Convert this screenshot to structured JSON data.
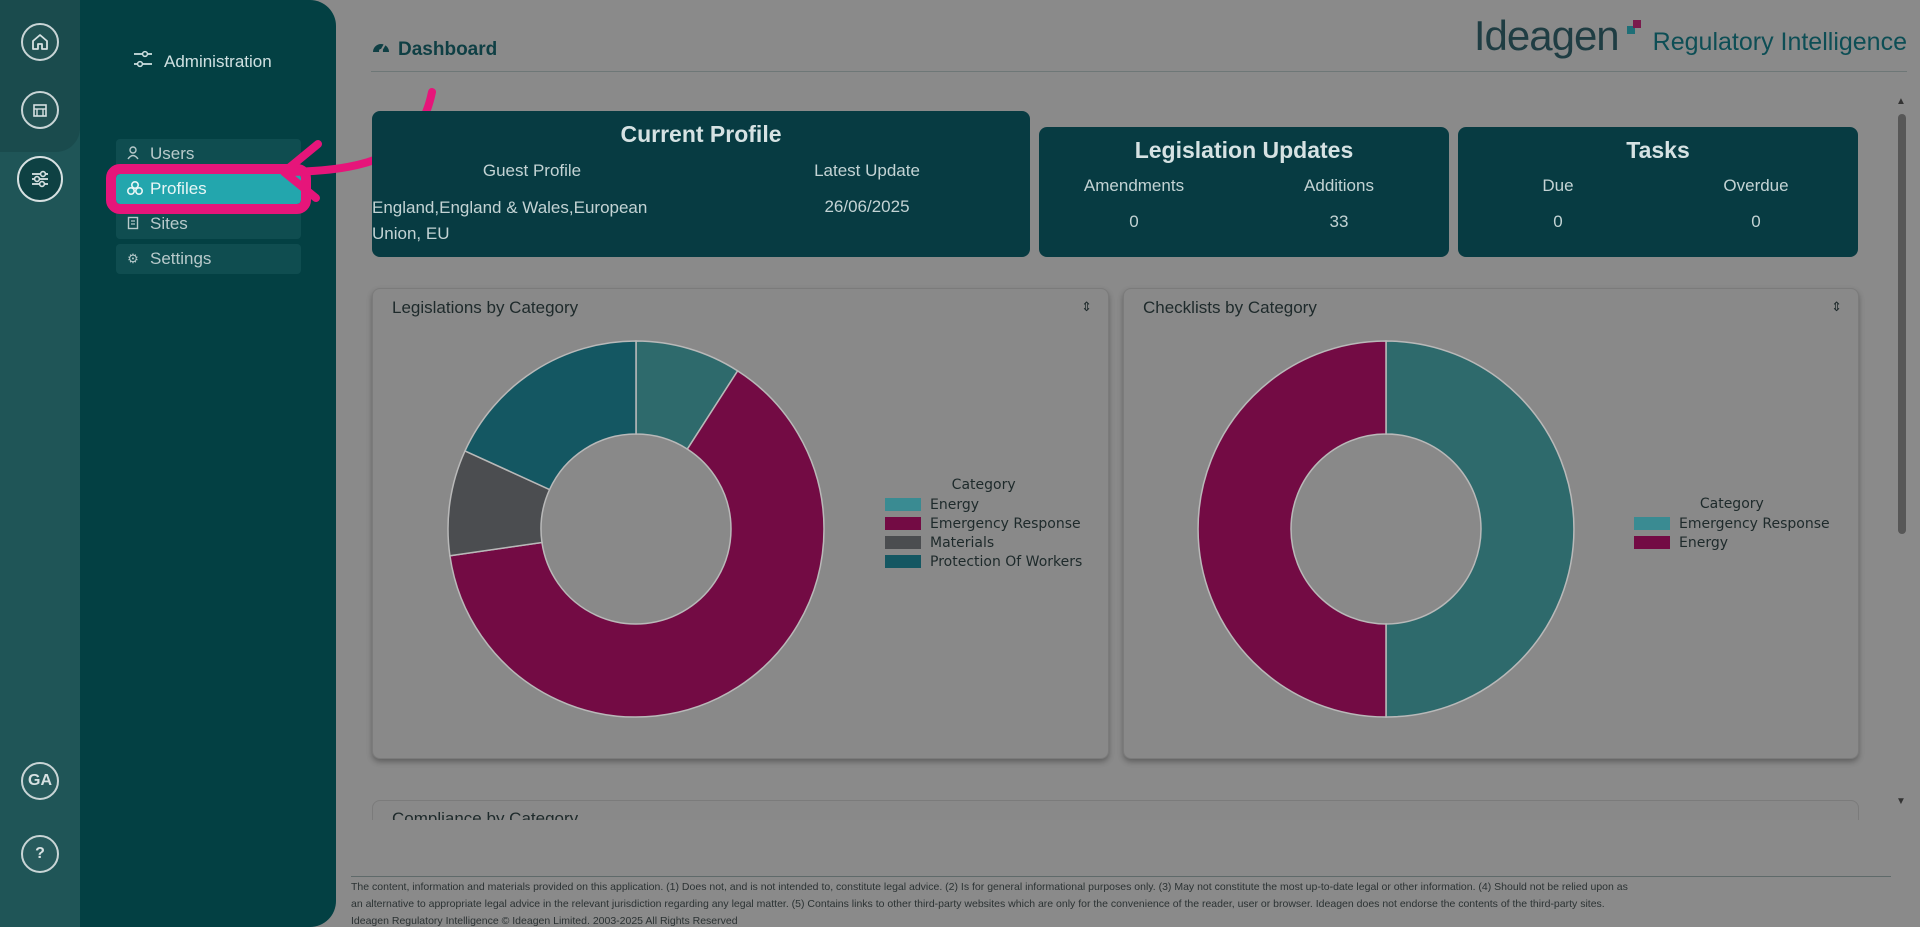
{
  "rail": {
    "home_icon": "home-icon",
    "building_icon": "building-icon",
    "sliders_icon": "sliders-icon",
    "user_initials": "GA",
    "help_label": "?"
  },
  "sidebar": {
    "title": "Administration",
    "items": [
      {
        "label": "Users",
        "icon": "user-icon"
      },
      {
        "label": "Profiles",
        "icon": "profiles-icon"
      },
      {
        "label": "Sites",
        "icon": "sites-icon"
      },
      {
        "label": "Settings",
        "icon": "gear-icon"
      }
    ]
  },
  "header": {
    "title": "Dashboard",
    "brand_name": "Ideagen",
    "brand_product": "Regulatory Intelligence"
  },
  "current_profile": {
    "title": "Current Profile",
    "profile_label": "Guest Profile",
    "profile_value": "England,England & Wales,European Union, EU",
    "update_label": "Latest Update",
    "update_value": "26/06/2025"
  },
  "legislation_updates": {
    "title": "Legislation Updates",
    "amendments_label": "Amendments",
    "amendments_value": "0",
    "additions_label": "Additions",
    "additions_value": "33"
  },
  "tasks": {
    "title": "Tasks",
    "due_label": "Due",
    "due_value": "0",
    "overdue_label": "Overdue",
    "overdue_value": "0"
  },
  "charts": {
    "legislations_title": "Legislations by Category",
    "checklists_title": "Checklists by Category",
    "compliance_title": "Compliance by Category",
    "toggle_glyph": "⇕"
  },
  "chart_data": [
    {
      "type": "pie",
      "title": "Legislations by Category",
      "legend_title": "Category",
      "categories": [
        "Energy",
        "Emergency Response",
        "Materials",
        "Protection Of Workers"
      ],
      "values": [
        3,
        21,
        3,
        6
      ],
      "colors": [
        "#2e6a6c",
        "#730b44",
        "#4b4d50",
        "#145762"
      ],
      "legend_colors": [
        "#3a8b92",
        "#730b44",
        "#4b4d50",
        "#145762"
      ]
    },
    {
      "type": "pie",
      "title": "Checklists by Category",
      "legend_title": "Category",
      "categories": [
        "Emergency Response",
        "Energy"
      ],
      "values": [
        1,
        1
      ],
      "colors": [
        "#2e6a6c",
        "#730b44"
      ],
      "legend_colors": [
        "#3a8b92",
        "#730b44"
      ]
    }
  ],
  "footer": {
    "line1": "The content, information and materials provided on this application. (1) Does not, and is not intended to, constitute legal advice. (2) Is for general informational purposes only. (3) May not constitute the most up-to-date legal or other information. (4) Should not be relied upon as",
    "line2": "an alternative to appropriate legal advice in the relevant jurisdiction regarding any legal matter. (5) Contains links to other third-party websites which are only for the convenience of the reader, user or browser. Ideagen does not endorse the contents of the third-party sites.",
    "line3": "Ideagen Regulatory Intelligence © Ideagen Limited. 2003-2025 All Rights Reserved"
  }
}
